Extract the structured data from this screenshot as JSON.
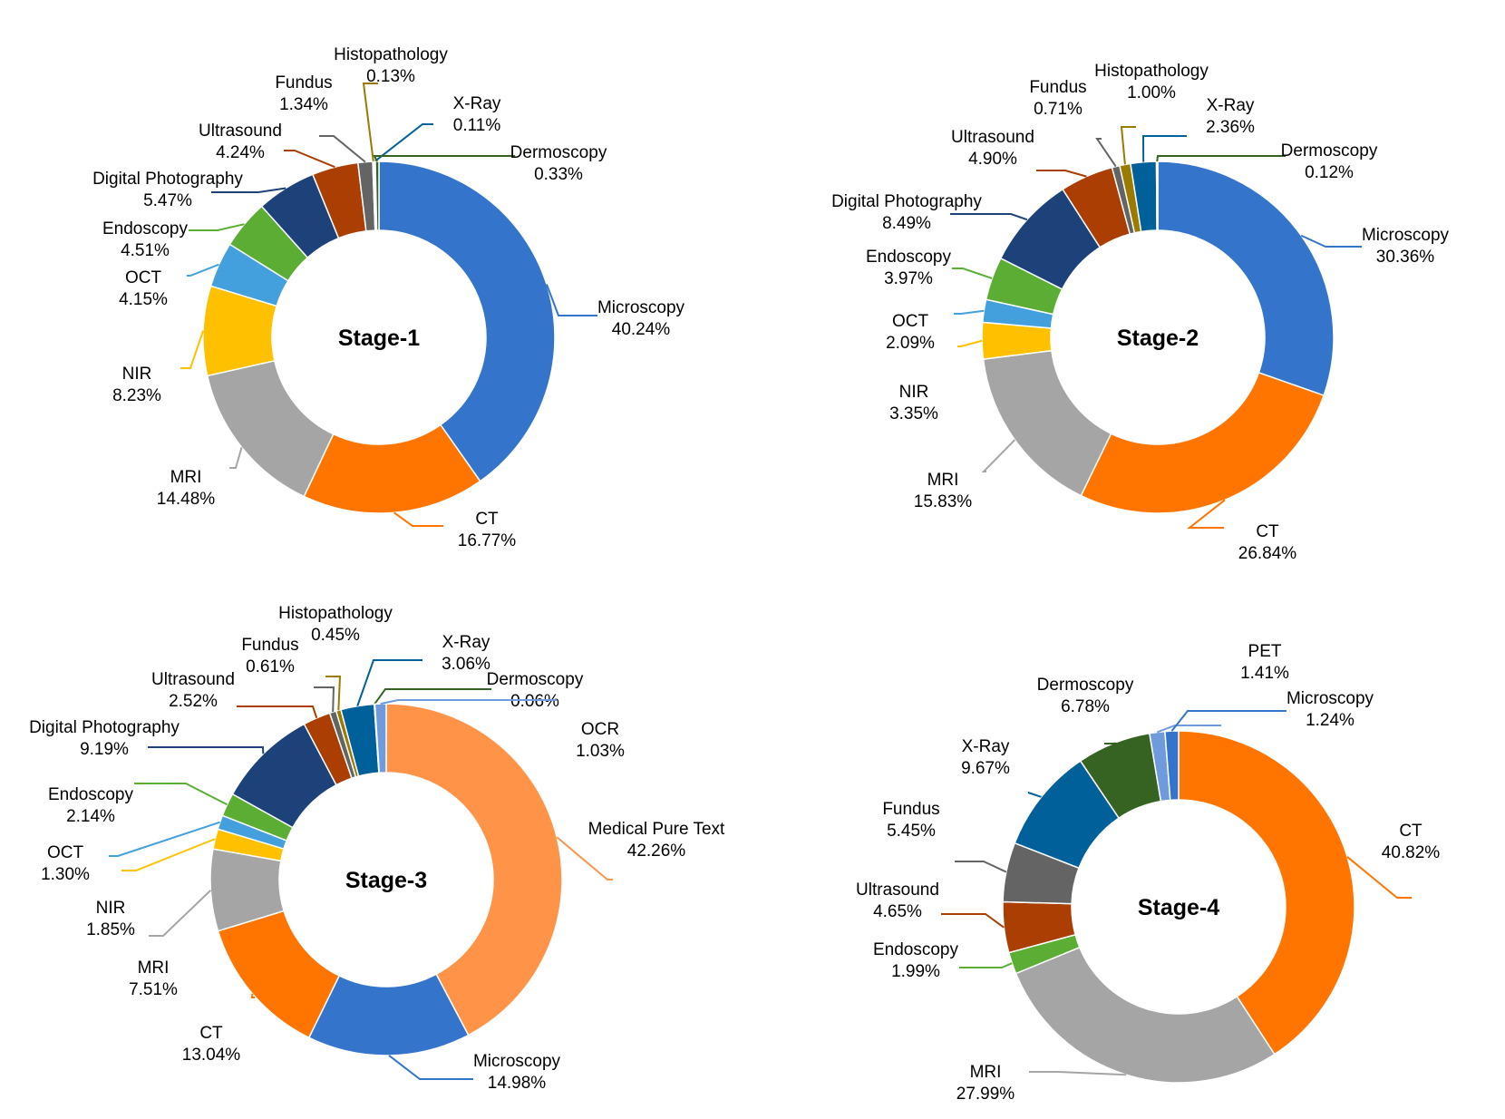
{
  "colors": {
    "Microscopy": "#3474CB",
    "CT": "#FF7500",
    "MRI": "#A5A5A5",
    "NIR": "#FFC000",
    "OCT": "#44A0DC",
    "Endoscopy": "#5BAD34",
    "Digital Photography": "#1D4179",
    "Ultrasound": "#AA3E03",
    "Fundus": "#646464",
    "Histopathology": "#9B7A00",
    "X-Ray": "#00609A",
    "Dermoscopy": "#376322",
    "OCR": "#6F9BDD",
    "Medical Pure Text": "#FF9448",
    "PET": "#6F9BDD",
    "leader_Microscopy_stage4": "#3474CB"
  },
  "chart_data": [
    {
      "type": "pie",
      "title": "Stage-1",
      "slices": [
        {
          "label": "Microscopy",
          "value": 40.24,
          "value_label": "40.24%",
          "color": "#3474CB"
        },
        {
          "label": "CT",
          "value": 16.77,
          "value_label": "16.77%",
          "color": "#FF7500"
        },
        {
          "label": "MRI",
          "value": 14.48,
          "value_label": "14.48%",
          "color": "#A5A5A5"
        },
        {
          "label": "NIR",
          "value": 8.23,
          "value_label": "8.23%",
          "color": "#FFC000"
        },
        {
          "label": "OCT",
          "value": 4.15,
          "value_label": "4.15%",
          "color": "#44A0DC"
        },
        {
          "label": "Endoscopy",
          "value": 4.51,
          "value_label": "4.51%",
          "color": "#5BAD34"
        },
        {
          "label": "Digital Photography",
          "value": 5.47,
          "value_label": "5.47%",
          "color": "#1D4179"
        },
        {
          "label": "Ultrasound",
          "value": 4.24,
          "value_label": "4.24%",
          "color": "#AA3E03"
        },
        {
          "label": "Fundus",
          "value": 1.34,
          "value_label": "1.34%",
          "color": "#646464"
        },
        {
          "label": "Histopathology",
          "value": 0.13,
          "value_label": "0.13%",
          "color": "#9B7A00"
        },
        {
          "label": "X-Ray",
          "value": 0.11,
          "value_label": "0.11%",
          "color": "#00609A"
        },
        {
          "label": "Dermoscopy",
          "value": 0.33,
          "value_label": "0.33%",
          "color": "#376322"
        }
      ]
    },
    {
      "type": "pie",
      "title": "Stage-2",
      "slices": [
        {
          "label": "Microscopy",
          "value": 30.36,
          "value_label": "30.36%",
          "color": "#3474CB"
        },
        {
          "label": "CT",
          "value": 26.84,
          "value_label": "26.84%",
          "color": "#FF7500"
        },
        {
          "label": "MRI",
          "value": 15.83,
          "value_label": "15.83%",
          "color": "#A5A5A5"
        },
        {
          "label": "NIR",
          "value": 3.35,
          "value_label": "3.35%",
          "color": "#FFC000"
        },
        {
          "label": "OCT",
          "value": 2.09,
          "value_label": "2.09%",
          "color": "#44A0DC"
        },
        {
          "label": "Endoscopy",
          "value": 3.97,
          "value_label": "3.97%",
          "color": "#5BAD34"
        },
        {
          "label": "Digital Photography",
          "value": 8.49,
          "value_label": "8.49%",
          "color": "#1D4179"
        },
        {
          "label": "Ultrasound",
          "value": 4.9,
          "value_label": "4.90%",
          "color": "#AA3E03"
        },
        {
          "label": "Fundus",
          "value": 0.71,
          "value_label": "0.71%",
          "color": "#646464"
        },
        {
          "label": "Histopathology",
          "value": 1.0,
          "value_label": "1.00%",
          "color": "#9B7A00"
        },
        {
          "label": "X-Ray",
          "value": 2.36,
          "value_label": "2.36%",
          "color": "#00609A"
        },
        {
          "label": "Dermoscopy",
          "value": 0.12,
          "value_label": "0.12%",
          "color": "#376322"
        }
      ]
    },
    {
      "type": "pie",
      "title": "Stage-3",
      "slices": [
        {
          "label": "Medical Pure Text",
          "value": 42.26,
          "value_label": "42.26%",
          "color": "#FF9448"
        },
        {
          "label": "Microscopy",
          "value": 14.98,
          "value_label": "14.98%",
          "color": "#3474CB"
        },
        {
          "label": "CT",
          "value": 13.04,
          "value_label": "13.04%",
          "color": "#FF7500"
        },
        {
          "label": "MRI",
          "value": 7.51,
          "value_label": "7.51%",
          "color": "#A5A5A5"
        },
        {
          "label": "NIR",
          "value": 1.85,
          "value_label": "1.85%",
          "color": "#FFC000"
        },
        {
          "label": "OCT",
          "value": 1.3,
          "value_label": "1.30%",
          "color": "#44A0DC"
        },
        {
          "label": "Endoscopy",
          "value": 2.14,
          "value_label": "2.14%",
          "color": "#5BAD34"
        },
        {
          "label": "Digital Photography",
          "value": 9.19,
          "value_label": "9.19%",
          "color": "#1D4179"
        },
        {
          "label": "Ultrasound",
          "value": 2.52,
          "value_label": "2.52%",
          "color": "#AA3E03"
        },
        {
          "label": "Fundus",
          "value": 0.61,
          "value_label": "0.61%",
          "color": "#646464"
        },
        {
          "label": "Histopathology",
          "value": 0.45,
          "value_label": "0.45%",
          "color": "#9B7A00"
        },
        {
          "label": "X-Ray",
          "value": 3.06,
          "value_label": "3.06%",
          "color": "#00609A"
        },
        {
          "label": "Dermoscopy",
          "value": 0.06,
          "value_label": "0.06%",
          "color": "#376322"
        },
        {
          "label": "OCR",
          "value": 1.03,
          "value_label": "1.03%",
          "color": "#6F9BDD"
        }
      ]
    },
    {
      "type": "pie",
      "title": "Stage-4",
      "slices": [
        {
          "label": "CT",
          "value": 40.82,
          "value_label": "40.82%",
          "color": "#FF7500"
        },
        {
          "label": "MRI",
          "value": 27.99,
          "value_label": "27.99%",
          "color": "#A5A5A5"
        },
        {
          "label": "Endoscopy",
          "value": 1.99,
          "value_label": "1.99%",
          "color": "#5BAD34"
        },
        {
          "label": "Ultrasound",
          "value": 4.65,
          "value_label": "4.65%",
          "color": "#AA3E03"
        },
        {
          "label": "Fundus",
          "value": 5.45,
          "value_label": "5.45%",
          "color": "#646464"
        },
        {
          "label": "X-Ray",
          "value": 9.67,
          "value_label": "9.67%",
          "color": "#00609A"
        },
        {
          "label": "Dermoscopy",
          "value": 6.78,
          "value_label": "6.78%",
          "color": "#376322"
        },
        {
          "label": "PET",
          "value": 1.41,
          "value_label": "1.41%",
          "color": "#6F9BDD"
        },
        {
          "label": "Microscopy",
          "value": 1.24,
          "value_label": "1.24%",
          "color": "#3474CB"
        }
      ]
    }
  ]
}
